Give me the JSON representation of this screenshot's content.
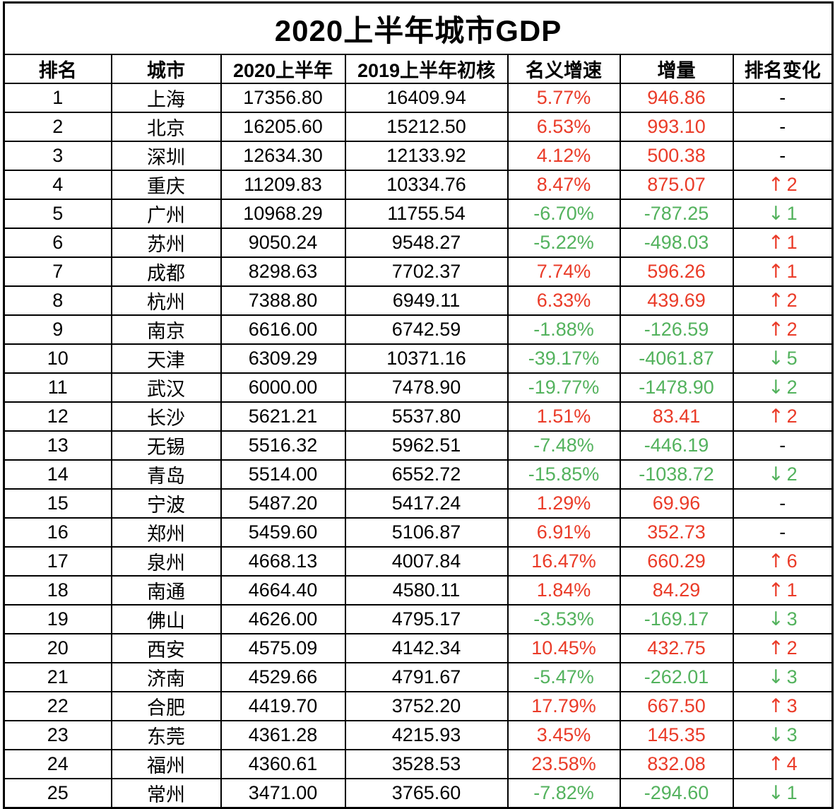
{
  "colors": {
    "red": "#ea3b28",
    "green": "#53b25d",
    "border": "#000000",
    "background": "#ffffff"
  },
  "icons": {
    "up_arrow": "↑",
    "down_arrow": "↓"
  },
  "chart_data": {
    "type": "table",
    "title": "2020上半年城市GDP",
    "columns": [
      "排名",
      "城市",
      "2020上半年",
      "2019上半年初核",
      "名义增速",
      "增量",
      "排名变化"
    ],
    "rows": [
      {
        "rank": "1",
        "city": "上海",
        "gdp_2020": "17356.80",
        "gdp_2019": "16409.94",
        "growth": "5.77%",
        "delta": "946.86",
        "value_color": "red",
        "change_dir": "none",
        "change_value": "-",
        "change_color": "black"
      },
      {
        "rank": "2",
        "city": "北京",
        "gdp_2020": "16205.60",
        "gdp_2019": "15212.50",
        "growth": "6.53%",
        "delta": "993.10",
        "value_color": "red",
        "change_dir": "none",
        "change_value": "-",
        "change_color": "black"
      },
      {
        "rank": "3",
        "city": "深圳",
        "gdp_2020": "12634.30",
        "gdp_2019": "12133.92",
        "growth": "4.12%",
        "delta": "500.38",
        "value_color": "red",
        "change_dir": "none",
        "change_value": "-",
        "change_color": "black"
      },
      {
        "rank": "4",
        "city": "重庆",
        "gdp_2020": "11209.83",
        "gdp_2019": "10334.76",
        "growth": "8.47%",
        "delta": "875.07",
        "value_color": "red",
        "change_dir": "up",
        "change_value": "2",
        "change_color": "red"
      },
      {
        "rank": "5",
        "city": "广州",
        "gdp_2020": "10968.29",
        "gdp_2019": "11755.54",
        "growth": "-6.70%",
        "delta": "-787.25",
        "value_color": "green",
        "change_dir": "down",
        "change_value": "1",
        "change_color": "green"
      },
      {
        "rank": "6",
        "city": "苏州",
        "gdp_2020": "9050.24",
        "gdp_2019": "9548.27",
        "growth": "-5.22%",
        "delta": "-498.03",
        "value_color": "green",
        "change_dir": "up",
        "change_value": "1",
        "change_color": "red"
      },
      {
        "rank": "7",
        "city": "成都",
        "gdp_2020": "8298.63",
        "gdp_2019": "7702.37",
        "growth": "7.74%",
        "delta": "596.26",
        "value_color": "red",
        "change_dir": "up",
        "change_value": "1",
        "change_color": "red"
      },
      {
        "rank": "8",
        "city": "杭州",
        "gdp_2020": "7388.80",
        "gdp_2019": "6949.11",
        "growth": "6.33%",
        "delta": "439.69",
        "value_color": "red",
        "change_dir": "up",
        "change_value": "2",
        "change_color": "red"
      },
      {
        "rank": "9",
        "city": "南京",
        "gdp_2020": "6616.00",
        "gdp_2019": "6742.59",
        "growth": "-1.88%",
        "delta": "-126.59",
        "value_color": "green",
        "change_dir": "up",
        "change_value": "2",
        "change_color": "red"
      },
      {
        "rank": "10",
        "city": "天津",
        "gdp_2020": "6309.29",
        "gdp_2019": "10371.16",
        "growth": "-39.17%",
        "delta": "-4061.87",
        "value_color": "green",
        "change_dir": "down",
        "change_value": "5",
        "change_color": "green"
      },
      {
        "rank": "11",
        "city": "武汉",
        "gdp_2020": "6000.00",
        "gdp_2019": "7478.90",
        "growth": "-19.77%",
        "delta": "-1478.90",
        "value_color": "green",
        "change_dir": "down",
        "change_value": "2",
        "change_color": "green"
      },
      {
        "rank": "12",
        "city": "长沙",
        "gdp_2020": "5621.21",
        "gdp_2019": "5537.80",
        "growth": "1.51%",
        "delta": "83.41",
        "value_color": "red",
        "change_dir": "up",
        "change_value": "2",
        "change_color": "red"
      },
      {
        "rank": "13",
        "city": "无锡",
        "gdp_2020": "5516.32",
        "gdp_2019": "5962.51",
        "growth": "-7.48%",
        "delta": "-446.19",
        "value_color": "green",
        "change_dir": "none",
        "change_value": "-",
        "change_color": "black"
      },
      {
        "rank": "14",
        "city": "青岛",
        "gdp_2020": "5514.00",
        "gdp_2019": "6552.72",
        "growth": "-15.85%",
        "delta": "-1038.72",
        "value_color": "green",
        "change_dir": "down",
        "change_value": "2",
        "change_color": "green"
      },
      {
        "rank": "15",
        "city": "宁波",
        "gdp_2020": "5487.20",
        "gdp_2019": "5417.24",
        "growth": "1.29%",
        "delta": "69.96",
        "value_color": "red",
        "change_dir": "none",
        "change_value": "-",
        "change_color": "black"
      },
      {
        "rank": "16",
        "city": "郑州",
        "gdp_2020": "5459.60",
        "gdp_2019": "5106.87",
        "growth": "6.91%",
        "delta": "352.73",
        "value_color": "red",
        "change_dir": "none",
        "change_value": "-",
        "change_color": "black"
      },
      {
        "rank": "17",
        "city": "泉州",
        "gdp_2020": "4668.13",
        "gdp_2019": "4007.84",
        "growth": "16.47%",
        "delta": "660.29",
        "value_color": "red",
        "change_dir": "up",
        "change_value": "6",
        "change_color": "red"
      },
      {
        "rank": "18",
        "city": "南通",
        "gdp_2020": "4664.40",
        "gdp_2019": "4580.11",
        "growth": "1.84%",
        "delta": "84.29",
        "value_color": "red",
        "change_dir": "up",
        "change_value": "1",
        "change_color": "red"
      },
      {
        "rank": "19",
        "city": "佛山",
        "gdp_2020": "4626.00",
        "gdp_2019": "4795.17",
        "growth": "-3.53%",
        "delta": "-169.17",
        "value_color": "green",
        "change_dir": "down",
        "change_value": "3",
        "change_color": "green"
      },
      {
        "rank": "20",
        "city": "西安",
        "gdp_2020": "4575.09",
        "gdp_2019": "4142.34",
        "growth": "10.45%",
        "delta": "432.75",
        "value_color": "red",
        "change_dir": "up",
        "change_value": "2",
        "change_color": "red"
      },
      {
        "rank": "21",
        "city": "济南",
        "gdp_2020": "4529.66",
        "gdp_2019": "4791.67",
        "growth": "-5.47%",
        "delta": "-262.01",
        "value_color": "green",
        "change_dir": "down",
        "change_value": "3",
        "change_color": "green"
      },
      {
        "rank": "22",
        "city": "合肥",
        "gdp_2020": "4419.70",
        "gdp_2019": "3752.20",
        "growth": "17.79%",
        "delta": "667.50",
        "value_color": "red",
        "change_dir": "up",
        "change_value": "3",
        "change_color": "red"
      },
      {
        "rank": "23",
        "city": "东莞",
        "gdp_2020": "4361.28",
        "gdp_2019": "4215.93",
        "growth": "3.45%",
        "delta": "145.35",
        "value_color": "red",
        "change_dir": "down",
        "change_value": "3",
        "change_color": "green"
      },
      {
        "rank": "24",
        "city": "福州",
        "gdp_2020": "4360.61",
        "gdp_2019": "3528.53",
        "growth": "23.58%",
        "delta": "832.08",
        "value_color": "red",
        "change_dir": "up",
        "change_value": "4",
        "change_color": "red"
      },
      {
        "rank": "25",
        "city": "常州",
        "gdp_2020": "3471.00",
        "gdp_2019": "3765.60",
        "growth": "-7.82%",
        "delta": "-294.60",
        "value_color": "green",
        "change_dir": "down",
        "change_value": "1",
        "change_color": "green"
      }
    ]
  }
}
